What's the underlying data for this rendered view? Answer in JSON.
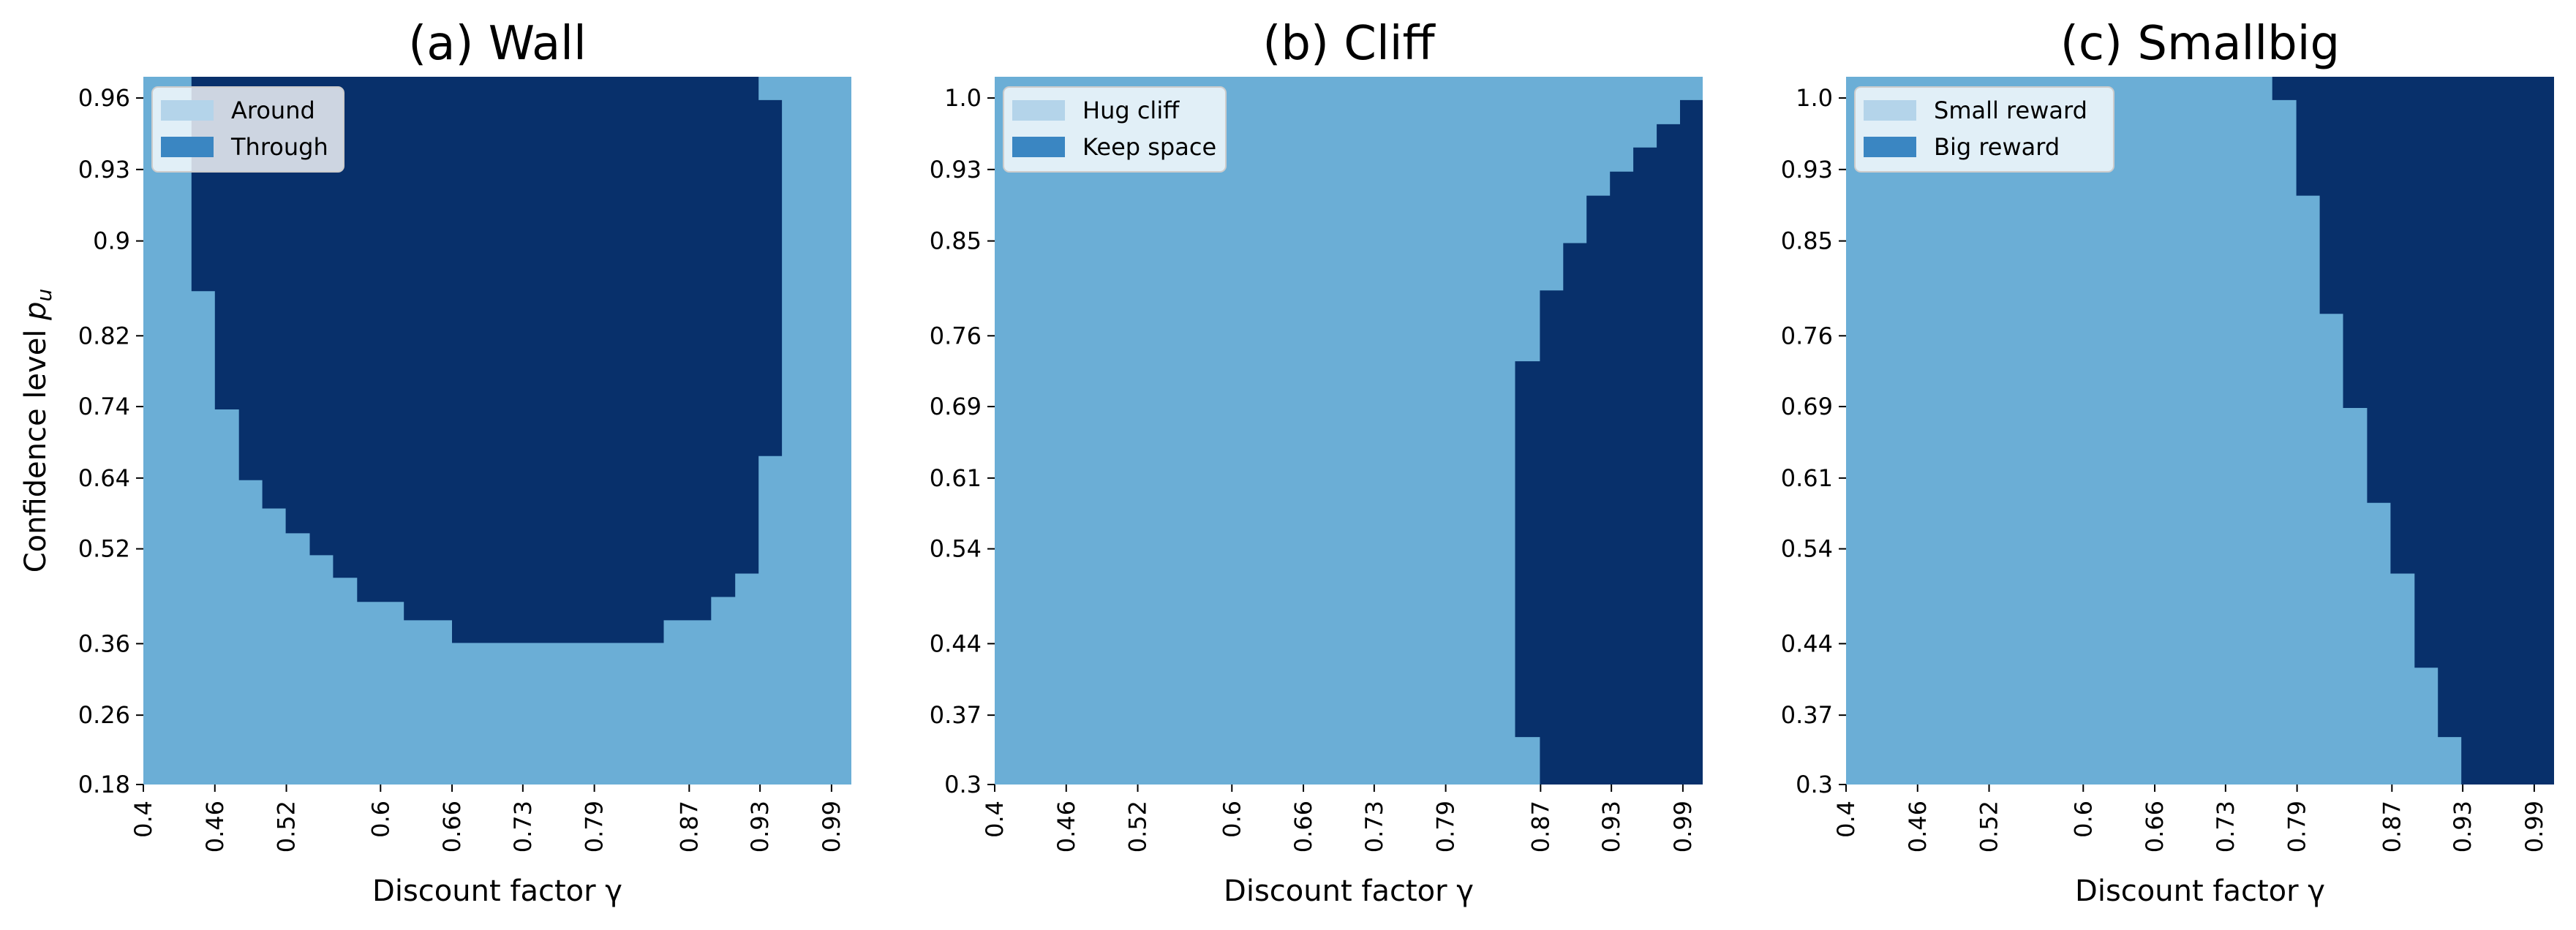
{
  "colors": {
    "light": "#6baed6",
    "dark": "#08306b",
    "legend_light": "#b4d4ea",
    "legend_dark": "#3a86c2"
  },
  "chart_data": [
    {
      "type": "heatmap",
      "title": "(a) Wall",
      "xlabel": "Discount factor γ",
      "ylabel": "Confidence level p_u",
      "x_range": [
        0.4,
        0.99
      ],
      "y_range": [
        0.18,
        0.96
      ],
      "x_ticks": [
        "0.4",
        "0.46",
        "0.52",
        "0.6",
        "0.66",
        "0.73",
        "0.79",
        "0.87",
        "0.93",
        "0.99"
      ],
      "y_ticks": [
        "0.96",
        "0.93",
        "0.9",
        "0.82",
        "0.74",
        "0.64",
        "0.52",
        "0.36",
        "0.26",
        "0.18"
      ],
      "legend": {
        "position": "upper-left",
        "entries": [
          "Around",
          "Through"
        ]
      },
      "boundary": [
        [
          0.4,
          0.95,
          0.96,
          0.3,
          0.3
        ],
        [
          0.42,
          0.95,
          0.96,
          0.3,
          0.3
        ],
        [
          0.44,
          0.95,
          0.96,
          0.85,
          0.9
        ],
        [
          0.46,
          0.95,
          0.96,
          0.75,
          0.85
        ],
        [
          0.48,
          0.95,
          0.96,
          0.64,
          0.74
        ],
        [
          0.5,
          0.95,
          0.96,
          0.6,
          0.64
        ],
        [
          0.52,
          0.95,
          0.96,
          0.56,
          0.6
        ],
        [
          0.54,
          0.95,
          0.96,
          0.52,
          0.56
        ],
        [
          0.56,
          0.95,
          0.96,
          0.48,
          0.52
        ],
        [
          0.58,
          0.95,
          0.96,
          0.44,
          0.48
        ],
        [
          0.6,
          0.95,
          0.96,
          0.4,
          0.44
        ],
        [
          0.62,
          0.95,
          0.96,
          0.36,
          0.4
        ],
        [
          0.66,
          0.95,
          0.96,
          0.32,
          0.36
        ],
        [
          0.71,
          0.95,
          0.96,
          0.31,
          0.32
        ],
        [
          0.8,
          0.95,
          0.96,
          0.31,
          0.32
        ],
        [
          0.84,
          0.95,
          0.96,
          0.32,
          0.36
        ],
        [
          0.88,
          0.95,
          0.96,
          0.36,
          0.4
        ],
        [
          0.9,
          0.95,
          0.96,
          0.4,
          0.44
        ],
        [
          0.92,
          0.95,
          0.96,
          0.44,
          0.52
        ],
        [
          0.94,
          0.95,
          0.96,
          0.52,
          0.56
        ],
        [
          0.96,
          0.95,
          0.96,
          0.56,
          0.6
        ]
      ]
    },
    {
      "type": "heatmap",
      "title": "(b) Cliff",
      "xlabel": "Discount factor γ",
      "ylabel": "",
      "x_range": [
        0.4,
        0.99
      ],
      "y_range": [
        0.3,
        1.0
      ],
      "x_ticks": [
        "0.4",
        "0.46",
        "0.52",
        "0.6",
        "0.66",
        "0.73",
        "0.79",
        "0.87",
        "0.93",
        "0.99"
      ],
      "y_ticks": [
        "1.0",
        "0.93",
        "0.85",
        "0.76",
        "0.69",
        "0.61",
        "0.54",
        "0.44",
        "0.37",
        "0.3"
      ],
      "legend": {
        "position": "upper-left",
        "entries": [
          "Hug cliff",
          "Keep space"
        ]
      }
    },
    {
      "type": "heatmap",
      "title": "(c) Smallbig",
      "xlabel": "Discount factor γ",
      "ylabel": "",
      "x_range": [
        0.4,
        0.99
      ],
      "y_range": [
        0.3,
        1.0
      ],
      "x_ticks": [
        "0.4",
        "0.46",
        "0.52",
        "0.6",
        "0.66",
        "0.73",
        "0.79",
        "0.87",
        "0.93",
        "0.99"
      ],
      "y_ticks": [
        "1.0",
        "0.93",
        "0.85",
        "0.76",
        "0.69",
        "0.61",
        "0.54",
        "0.44",
        "0.37",
        "0.3"
      ],
      "legend": {
        "position": "upper-left",
        "entries": [
          "Small reward",
          "Big reward"
        ]
      }
    }
  ]
}
